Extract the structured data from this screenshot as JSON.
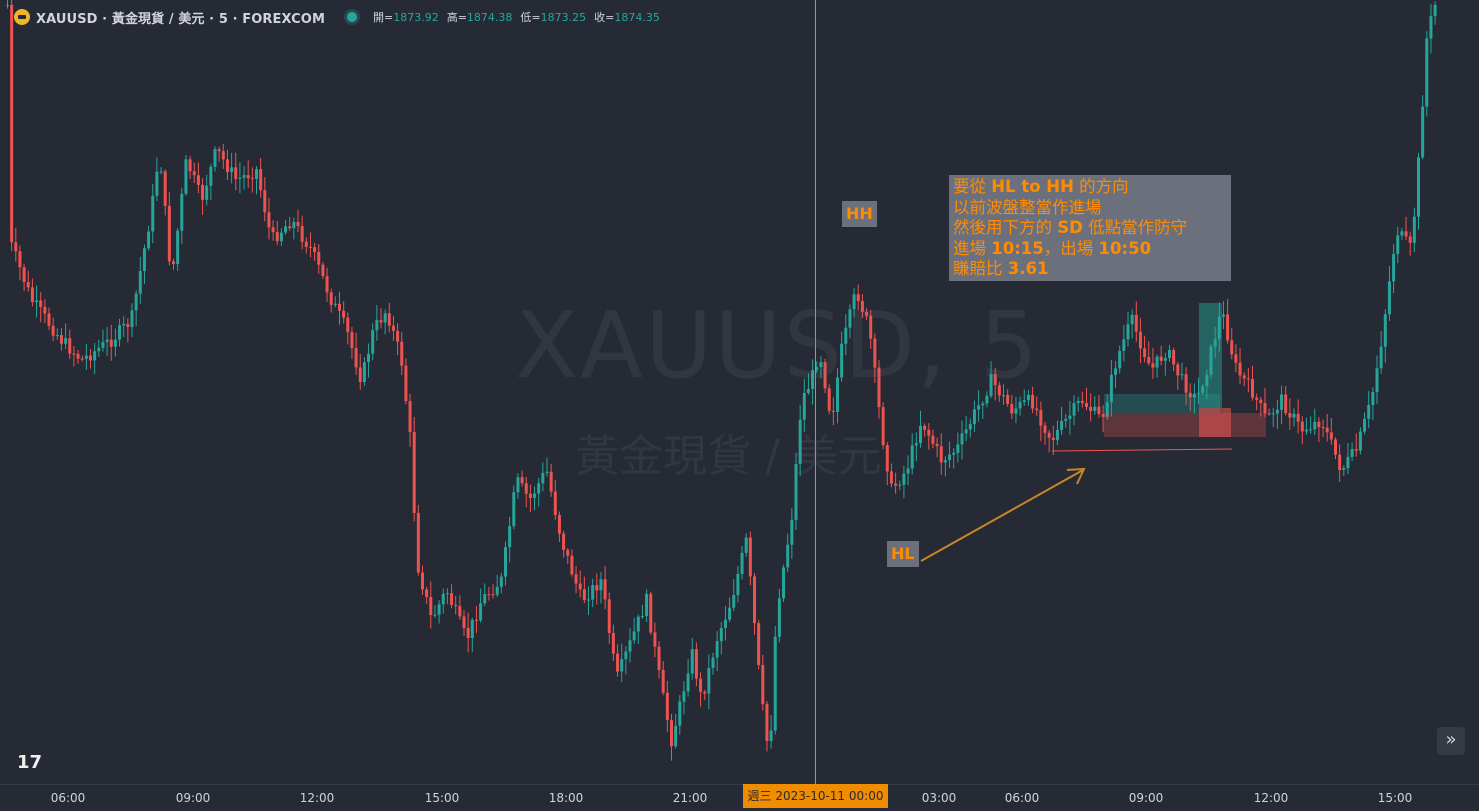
{
  "header": {
    "symbol_title": "XAUUSD · 黃金現貨 / 美元 · 5 · FOREXCOM",
    "ohlc": [
      {
        "label": "開=",
        "value": "1873.92"
      },
      {
        "label": "高=",
        "value": "1874.38"
      },
      {
        "label": "低=",
        "value": "1873.25"
      },
      {
        "label": "收=",
        "value": "1874.35"
      }
    ]
  },
  "watermark": {
    "symbol": "XAUUSD, 5",
    "description": "黃金現貨 / 美元"
  },
  "annotation": {
    "line1_a": "要從 ",
    "line1_b": "HL to HH",
    "line1_c": " 的方向",
    "line2": "以前波盤整當作進場",
    "line3_a": "然後用下方的 ",
    "line3_b": "SD",
    "line3_c": " 低點當作防守",
    "line4_a": "進場 ",
    "line4_b": "10:15",
    "line4_c": "，出場 ",
    "line4_d": "10:50",
    "line5_a": "賺賠比 ",
    "line5_b": "3.61"
  },
  "tags": {
    "hh": "HH",
    "hl": "HL"
  },
  "time_axis": {
    "ticks": [
      "06:00",
      "09:00",
      "12:00",
      "15:00",
      "18:00",
      "21:00",
      "03:00",
      "06:00",
      "09:00",
      "12:00",
      "15:00"
    ],
    "cursor_label": "週三 2023-10-11   00:00"
  },
  "colors": {
    "background": "#262a35",
    "up": "#26a69a",
    "down": "#ef5350",
    "accent": "#ff8c00",
    "crosshair": "#f0a020"
  },
  "icons": {
    "brand": "tradingview-logo-icon",
    "expand": "double-chevron-right-icon",
    "symbol": "gold-coin-icon"
  },
  "logo_text": "17",
  "expand_glyph": "»"
}
